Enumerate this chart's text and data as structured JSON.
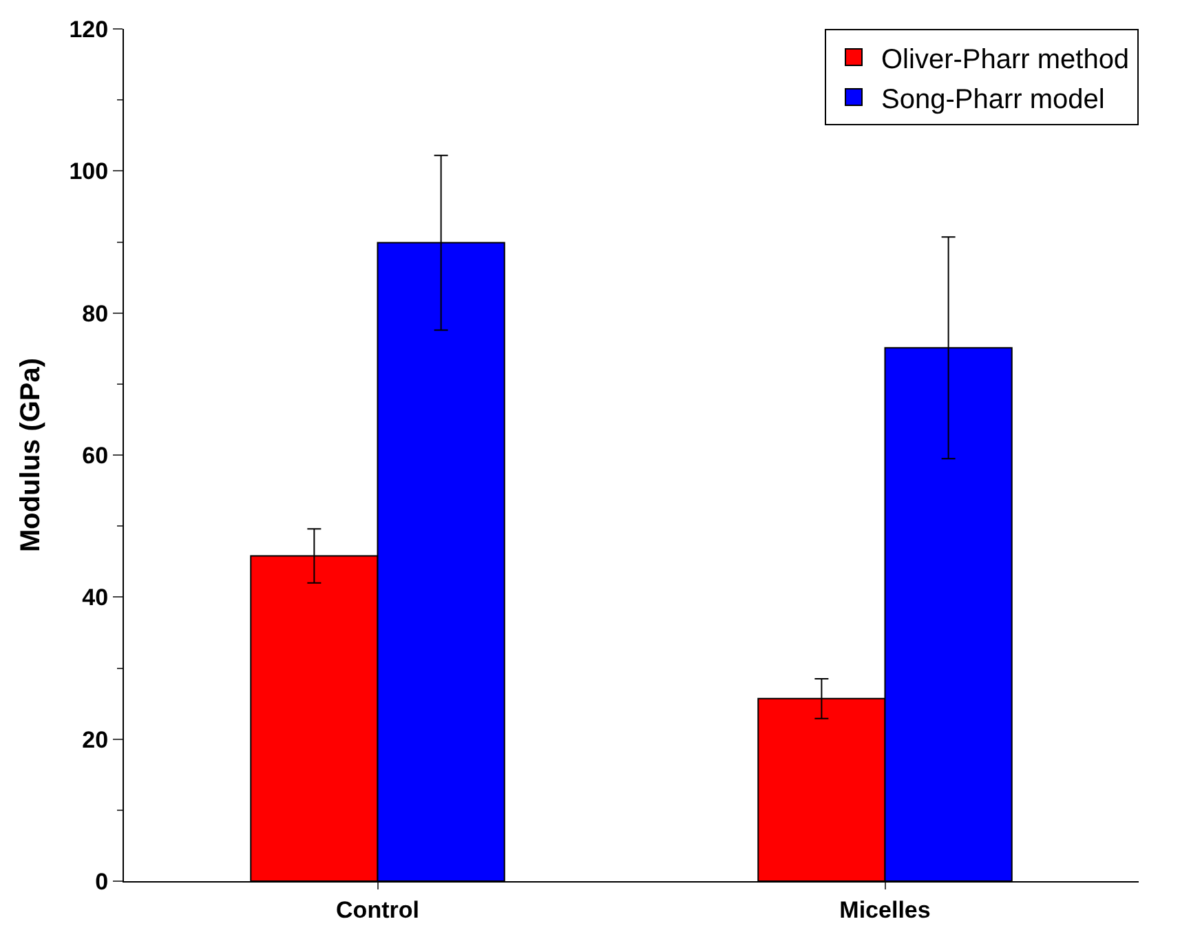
{
  "chart_data": {
    "type": "bar",
    "ylabel": "Modulus (GPa)",
    "categories": [
      "Control",
      "Micelles"
    ],
    "series": [
      {
        "name": "Oliver-Pharr method",
        "color": "#ff0000",
        "values": [
          45.8,
          25.7
        ],
        "errors": [
          3.8,
          2.8
        ]
      },
      {
        "name": "Song-Pharr model",
        "color": "#0000ff",
        "values": [
          89.9,
          75.1
        ],
        "errors": [
          12.3,
          15.6
        ]
      }
    ],
    "ylim": [
      0,
      120
    ],
    "yticks": [
      0,
      20,
      40,
      60,
      80,
      100,
      120
    ],
    "legend": "top right"
  }
}
